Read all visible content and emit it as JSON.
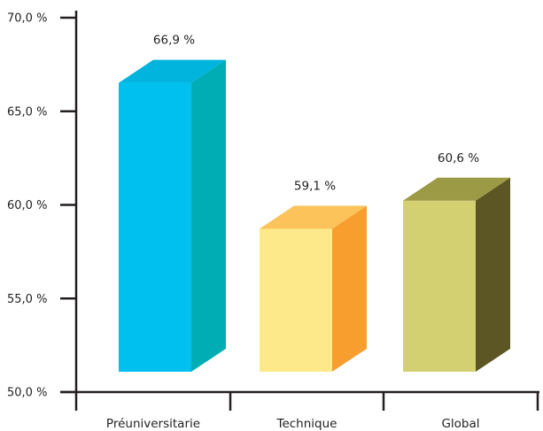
{
  "chart_data": {
    "type": "bar",
    "style": "3d",
    "categories": [
      "Préuniversitarie",
      "Technique",
      "Global"
    ],
    "values": [
      66.9,
      59.1,
      60.6
    ],
    "data_labels": [
      "66,9 %",
      "59,1 %",
      "60,6 %"
    ],
    "ylim": [
      50,
      70
    ],
    "yticks": [
      {
        "value": 50,
        "label": "50,0 %"
      },
      {
        "value": 55,
        "label": "55,0 %"
      },
      {
        "value": 60,
        "label": "60,0 %"
      },
      {
        "value": 65,
        "label": "65,0 %"
      },
      {
        "value": 70,
        "label": "70,0 %"
      }
    ],
    "grid": false,
    "colors": [
      {
        "front": "#00c0ef",
        "side": "#00adb4",
        "top": "#00b4dd"
      },
      {
        "front": "#fde989",
        "side": "#f79e2e",
        "top": "#fcc35b"
      },
      {
        "front": "#d3d071",
        "side": "#5c5625",
        "top": "#9c9a44"
      }
    ]
  }
}
